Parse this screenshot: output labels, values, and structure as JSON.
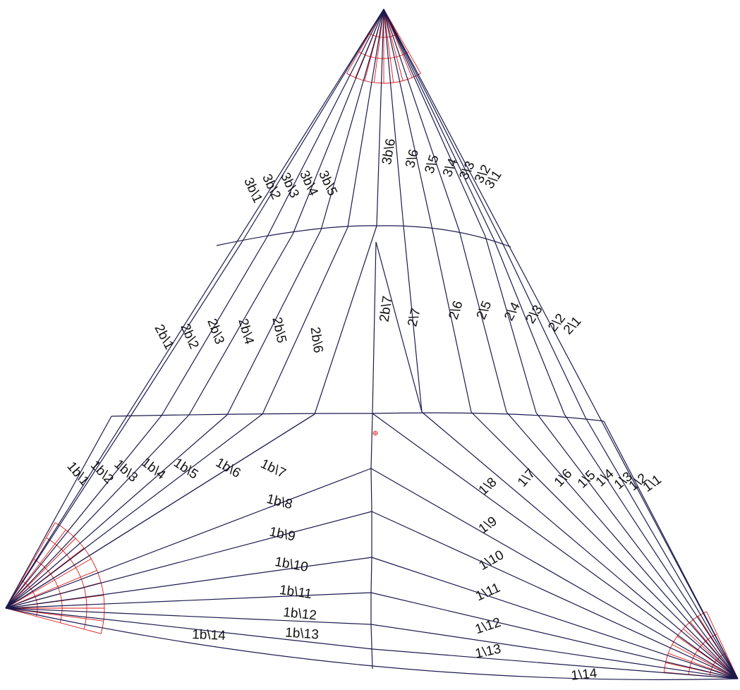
{
  "diagram": {
    "colors": {
      "seams": "#1c1a4e",
      "corner_fans": "#e01818",
      "labels": "#111111"
    },
    "panel_labels": {
      "top_left": [
        "3b\\1",
        "3b\\2",
        "3b\\3",
        "3b\\4",
        "3b\\5"
      ],
      "top_right": [
        "3b\\6",
        "3\\6",
        "3\\5",
        "3\\4",
        "3\\3",
        "3\\2",
        "3\\1"
      ],
      "mid_left": [
        "2b\\1",
        "2b\\2",
        "2b\\3",
        "2b\\4",
        "2b\\5",
        "2b\\6"
      ],
      "mid_right": [
        "2b\\7",
        "2\\7",
        "2\\6",
        "2\\5",
        "2\\4",
        "2\\3",
        "2\\2",
        "2\\1"
      ],
      "bottom_left_radial": [
        "1b\\1",
        "1b\\2",
        "1b\\3",
        "1b\\4",
        "1b\\5",
        "1b\\6",
        "1b\\7"
      ],
      "bottom_left_horizontal": [
        "1b\\8",
        "1b\\9",
        "1b\\10",
        "1b\\11",
        "1b\\12",
        "1b\\13",
        "1b\\14"
      ],
      "bottom_right_radial": [
        "1\\7",
        "1\\6",
        "1\\5",
        "1\\4",
        "1\\3",
        "1\\2",
        "1\\1"
      ],
      "bottom_right_horizontal": [
        "1\\8",
        "1\\9",
        "1\\10",
        "1\\11",
        "1\\12",
        "1\\13",
        "1\\14"
      ]
    }
  }
}
